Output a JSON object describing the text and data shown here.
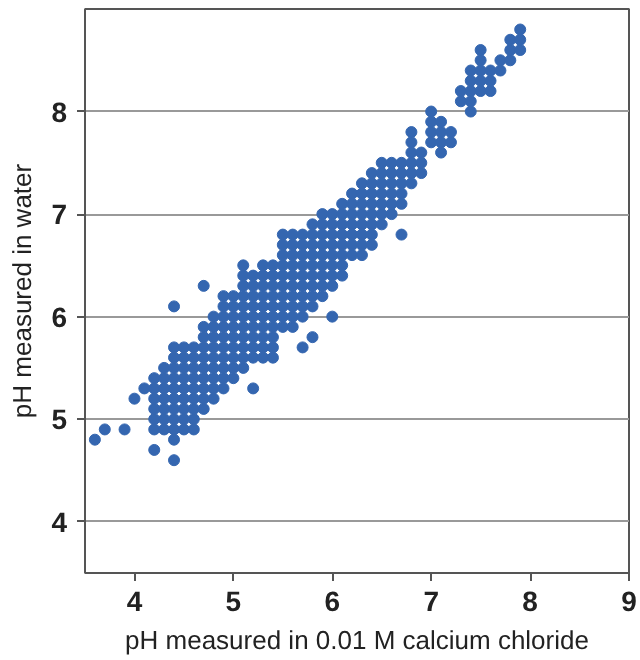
{
  "chart_data": {
    "type": "scatter",
    "xlabel": "pH measured in 0.01 M calcium chloride",
    "ylabel": "pH measured in water",
    "xlim": [
      3.5,
      9
    ],
    "ylim": [
      3.5,
      9
    ],
    "xticks": [
      4,
      5,
      6,
      7,
      8,
      9
    ],
    "yticks": [
      4,
      5,
      6,
      7,
      8
    ],
    "grid": "y",
    "marker": "circle",
    "series": [
      {
        "color": "#3466b0",
        "x": [
          3.6,
          3.7,
          3.9,
          4.0,
          4.1,
          4.2,
          4.2,
          4.2,
          4.2,
          4.2,
          4.2,
          4.2,
          4.3,
          4.3,
          4.3,
          4.3,
          4.3,
          4.3,
          4.3,
          4.4,
          4.4,
          4.4,
          4.4,
          4.4,
          4.4,
          4.4,
          4.4,
          4.4,
          4.4,
          4.4,
          4.4,
          4.5,
          4.5,
          4.5,
          4.5,
          4.5,
          4.5,
          4.5,
          4.5,
          4.5,
          4.6,
          4.6,
          4.6,
          4.6,
          4.6,
          4.6,
          4.6,
          4.6,
          4.6,
          4.7,
          4.7,
          4.7,
          4.7,
          4.7,
          4.7,
          4.7,
          4.7,
          4.7,
          4.7,
          4.8,
          4.8,
          4.8,
          4.8,
          4.8,
          4.8,
          4.8,
          4.8,
          4.8,
          4.9,
          4.9,
          4.9,
          4.9,
          4.9,
          4.9,
          4.9,
          4.9,
          4.9,
          4.9,
          5.0,
          5.0,
          5.0,
          5.0,
          5.0,
          5.0,
          5.0,
          5.0,
          5.0,
          5.1,
          5.1,
          5.1,
          5.1,
          5.1,
          5.1,
          5.1,
          5.1,
          5.1,
          5.1,
          5.1,
          5.2,
          5.2,
          5.2,
          5.2,
          5.2,
          5.2,
          5.2,
          5.2,
          5.2,
          5.2,
          5.3,
          5.3,
          5.3,
          5.3,
          5.3,
          5.3,
          5.3,
          5.3,
          5.3,
          5.3,
          5.4,
          5.4,
          5.4,
          5.4,
          5.4,
          5.4,
          5.4,
          5.4,
          5.4,
          5.4,
          5.5,
          5.5,
          5.5,
          5.5,
          5.5,
          5.5,
          5.5,
          5.5,
          5.5,
          5.5,
          5.6,
          5.6,
          5.6,
          5.6,
          5.6,
          5.6,
          5.6,
          5.6,
          5.6,
          5.6,
          5.7,
          5.7,
          5.7,
          5.7,
          5.7,
          5.7,
          5.7,
          5.7,
          5.7,
          5.7,
          5.8,
          5.8,
          5.8,
          5.8,
          5.8,
          5.8,
          5.8,
          5.8,
          5.8,
          5.8,
          5.9,
          5.9,
          5.9,
          5.9,
          5.9,
          5.9,
          5.9,
          5.9,
          5.9,
          6.0,
          6.0,
          6.0,
          6.0,
          6.0,
          6.0,
          6.0,
          6.0,
          6.0,
          6.1,
          6.1,
          6.1,
          6.1,
          6.1,
          6.1,
          6.1,
          6.1,
          6.2,
          6.2,
          6.2,
          6.2,
          6.2,
          6.2,
          6.2,
          6.3,
          6.3,
          6.3,
          6.3,
          6.3,
          6.3,
          6.3,
          6.3,
          6.4,
          6.4,
          6.4,
          6.4,
          6.4,
          6.4,
          6.4,
          6.4,
          6.5,
          6.5,
          6.5,
          6.5,
          6.5,
          6.5,
          6.5,
          6.6,
          6.6,
          6.6,
          6.6,
          6.6,
          6.6,
          6.7,
          6.7,
          6.7,
          6.7,
          6.7,
          6.7,
          6.8,
          6.8,
          6.8,
          6.8,
          6.8,
          6.8,
          6.9,
          6.9,
          6.9,
          7.0,
          7.0,
          7.0,
          7.0,
          7.1,
          7.1,
          7.1,
          7.1,
          7.2,
          7.2,
          7.3,
          7.3,
          7.4,
          7.4,
          7.4,
          7.4,
          7.4,
          7.5,
          7.5,
          7.5,
          7.5,
          7.5,
          7.6,
          7.6,
          7.6,
          7.7,
          7.7,
          7.8,
          7.8,
          7.8,
          7.9,
          7.9,
          7.9
        ],
        "values": [
          4.8,
          4.9,
          4.9,
          5.2,
          5.3,
          4.7,
          4.9,
          5.0,
          5.1,
          5.2,
          5.3,
          5.4,
          4.9,
          5.0,
          5.1,
          5.2,
          5.3,
          5.4,
          5.5,
          4.6,
          4.8,
          4.9,
          5.0,
          5.1,
          5.2,
          5.3,
          5.4,
          5.5,
          5.6,
          5.7,
          6.1,
          4.9,
          5.0,
          5.1,
          5.2,
          5.3,
          5.4,
          5.5,
          5.6,
          5.7,
          4.9,
          5.0,
          5.1,
          5.2,
          5.3,
          5.4,
          5.5,
          5.6,
          5.7,
          5.1,
          5.2,
          5.3,
          5.4,
          5.5,
          5.6,
          5.7,
          5.8,
          5.9,
          6.3,
          5.2,
          5.3,
          5.4,
          5.5,
          5.6,
          5.7,
          5.8,
          5.9,
          6.0,
          5.3,
          5.4,
          5.5,
          5.6,
          5.7,
          5.8,
          5.9,
          6.0,
          6.1,
          6.2,
          5.4,
          5.5,
          5.6,
          5.7,
          5.8,
          5.9,
          6.0,
          6.1,
          6.2,
          5.5,
          5.6,
          5.7,
          5.8,
          5.9,
          6.0,
          6.1,
          6.2,
          6.3,
          6.4,
          6.5,
          5.3,
          5.6,
          5.7,
          5.8,
          5.9,
          6.0,
          6.1,
          6.2,
          6.3,
          6.4,
          5.6,
          5.7,
          5.8,
          5.9,
          6.0,
          6.1,
          6.2,
          6.3,
          6.4,
          6.5,
          5.6,
          5.7,
          5.8,
          5.9,
          6.0,
          6.1,
          6.2,
          6.3,
          6.4,
          6.5,
          5.9,
          6.0,
          6.1,
          6.2,
          6.3,
          6.4,
          6.5,
          6.6,
          6.7,
          6.8,
          5.9,
          6.0,
          6.1,
          6.2,
          6.3,
          6.4,
          6.5,
          6.6,
          6.7,
          6.8,
          5.7,
          6.0,
          6.1,
          6.2,
          6.3,
          6.4,
          6.5,
          6.6,
          6.7,
          6.8,
          5.8,
          6.1,
          6.2,
          6.3,
          6.4,
          6.5,
          6.6,
          6.7,
          6.8,
          6.9,
          6.2,
          6.3,
          6.4,
          6.5,
          6.6,
          6.7,
          6.8,
          6.9,
          7.0,
          6.0,
          6.3,
          6.4,
          6.5,
          6.6,
          6.7,
          6.8,
          6.9,
          7.0,
          6.4,
          6.5,
          6.6,
          6.7,
          6.8,
          6.9,
          7.0,
          7.1,
          6.6,
          6.7,
          6.8,
          6.9,
          7.0,
          7.1,
          7.2,
          6.6,
          6.7,
          6.8,
          6.9,
          7.0,
          7.1,
          7.2,
          7.3,
          6.7,
          6.8,
          6.9,
          7.0,
          7.1,
          7.2,
          7.3,
          7.4,
          6.9,
          7.0,
          7.1,
          7.2,
          7.3,
          7.4,
          7.5,
          7.0,
          7.1,
          7.2,
          7.3,
          7.4,
          7.5,
          6.8,
          7.1,
          7.2,
          7.3,
          7.4,
          7.5,
          7.3,
          7.4,
          7.5,
          7.6,
          7.7,
          7.8,
          7.4,
          7.5,
          7.6,
          7.7,
          7.8,
          7.9,
          8.0,
          7.6,
          7.7,
          7.8,
          7.9,
          7.7,
          7.8,
          8.1,
          8.2,
          8.0,
          8.1,
          8.2,
          8.3,
          8.4,
          8.2,
          8.3,
          8.4,
          8.5,
          8.6,
          8.2,
          8.3,
          8.4,
          8.4,
          8.5,
          8.5,
          8.6,
          8.7,
          8.6,
          8.7,
          8.8
        ]
      }
    ]
  }
}
